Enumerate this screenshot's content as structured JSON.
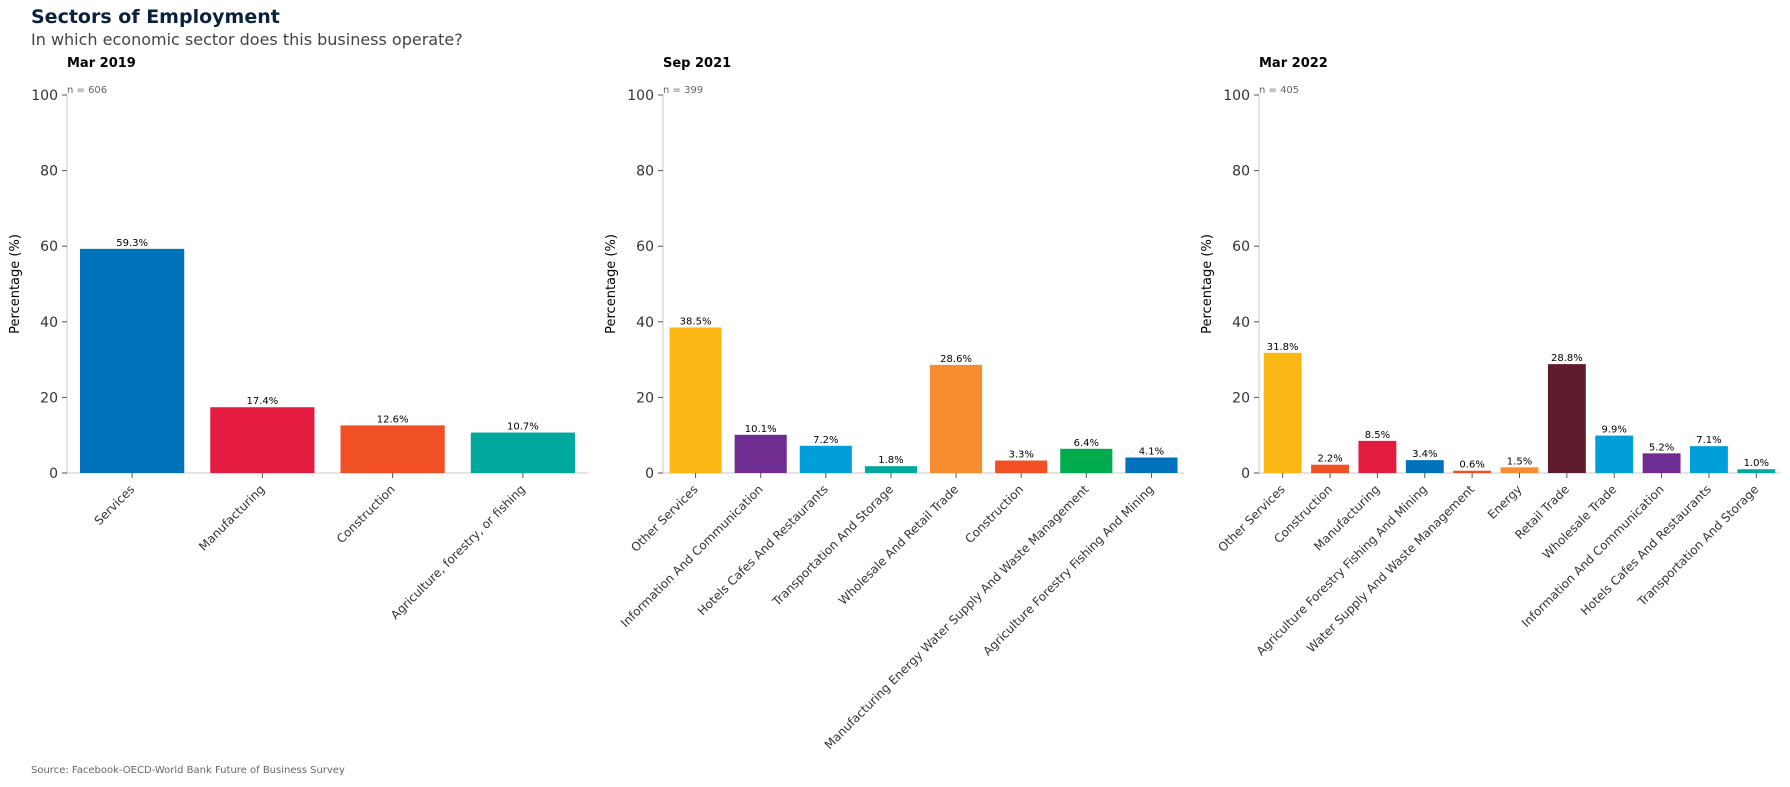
{
  "header": {
    "title": "Sectors of Employment",
    "subtitle": "In which economic sector does this business operate?"
  },
  "footer": {
    "source": "Source: Facebook-OECD-World Bank Future of Business Survey"
  },
  "chart_data": [
    {
      "type": "bar",
      "title": "Mar 2019",
      "note": "n = 606",
      "ylabel": "Percentage (%)",
      "ylim": [
        0,
        100
      ],
      "yticks": [
        0,
        20,
        40,
        60,
        80,
        100
      ],
      "categories": [
        "Services",
        "Manufacturing",
        "Construction",
        "Agriculture, forestry, or fishing"
      ],
      "values": [
        59.3,
        17.4,
        12.6,
        10.7
      ],
      "data_labels": [
        "59.3%",
        "17.4%",
        "12.6%",
        "10.7%"
      ],
      "colors": [
        "#0072bc",
        "#e31b3f",
        "#f15025",
        "#00a99d"
      ]
    },
    {
      "type": "bar",
      "title": "Sep 2021",
      "note": "n = 399",
      "ylabel": "Percentage (%)",
      "ylim": [
        0,
        100
      ],
      "yticks": [
        0,
        20,
        40,
        60,
        80,
        100
      ],
      "categories": [
        "Other Services",
        "Information And Communication",
        "Hotels Cafes And Restaurants",
        "Transportation And Storage",
        "Wholesale And Retail Trade",
        "Construction",
        "Manufacturing Energy Water Supply And Waste Management",
        "Agriculture Forestry Fishing And Mining"
      ],
      "values": [
        38.5,
        10.1,
        7.2,
        1.8,
        28.6,
        3.3,
        6.4,
        4.1
      ],
      "data_labels": [
        "38.5%",
        "10.1%",
        "7.2%",
        "1.8%",
        "28.6%",
        "3.3%",
        "6.4%",
        "4.1%"
      ],
      "colors": [
        "#fbb713",
        "#6f2c91",
        "#009fda",
        "#00a99d",
        "#f68d2e",
        "#f15025",
        "#00ab4e",
        "#0072bc"
      ]
    },
    {
      "type": "bar",
      "title": "Mar 2022",
      "note": "n = 405",
      "ylabel": "Percentage (%)",
      "ylim": [
        0,
        100
      ],
      "yticks": [
        0,
        20,
        40,
        60,
        80,
        100
      ],
      "categories": [
        "Other Services",
        "Construction",
        "Manufacturing",
        "Agriculture Forestry Fishing And Mining",
        "Water Supply And Waste Management",
        "Energy",
        "Retail Trade",
        "Wholesale Trade",
        "Information And Communication",
        "Hotels Cafes And Restaurants",
        "Transportation And Storage"
      ],
      "values": [
        31.8,
        2.2,
        8.5,
        3.4,
        0.6,
        1.5,
        28.8,
        9.9,
        5.2,
        7.1,
        1.0
      ],
      "data_labels": [
        "31.8%",
        "2.2%",
        "8.5%",
        "3.4%",
        "0.6%",
        "1.5%",
        "28.8%",
        "9.9%",
        "5.2%",
        "7.1%",
        "1.0%"
      ],
      "colors": [
        "#fbb713",
        "#f15025",
        "#e31b3f",
        "#0072bc",
        "#f15025",
        "#f68d2e",
        "#5e1c2e",
        "#009fda",
        "#6f2c91",
        "#009fda",
        "#00a99d"
      ]
    }
  ]
}
